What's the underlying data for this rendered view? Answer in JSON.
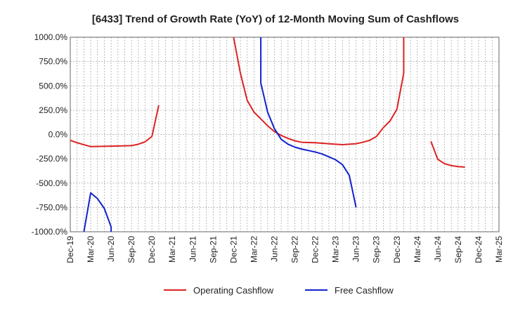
{
  "chart_data": {
    "type": "line",
    "title": "[6433]  Trend of Growth Rate (YoY) of 12-Month Moving Sum of Cashflows",
    "xlabel": "",
    "ylabel": "",
    "ylim": [
      -1000,
      1000
    ],
    "y_ticks": [
      "1000.0%",
      "750.0%",
      "500.0%",
      "250.0%",
      "0.0%",
      "-250.0%",
      "-500.0%",
      "-750.0%",
      "-1000.0%"
    ],
    "y_tick_values": [
      1000,
      750,
      500,
      250,
      0,
      -250,
      -500,
      -750,
      -1000
    ],
    "x_ticks": [
      "Dec-19",
      "Mar-20",
      "Jun-20",
      "Sep-20",
      "Dec-20",
      "Mar-21",
      "Jun-21",
      "Sep-21",
      "Dec-21",
      "Mar-22",
      "Jun-22",
      "Sep-22",
      "Dec-22",
      "Mar-23",
      "Jun-23",
      "Sep-23",
      "Dec-23",
      "Mar-24",
      "Jun-24",
      "Sep-24",
      "Dec-24",
      "Mar-25"
    ],
    "grid": true,
    "legend_position": "bottom",
    "series": [
      {
        "name": "Operating Cashflow",
        "color": "#dd2222",
        "points": [
          [
            "Dec-19",
            -60
          ],
          [
            "Jan-20",
            -85
          ],
          [
            "Feb-20",
            -105
          ],
          [
            "Mar-20",
            -125
          ],
          [
            "Apr-20",
            -123
          ],
          [
            "Jun-20",
            -120
          ],
          [
            "Sep-20",
            -115
          ],
          [
            "Oct-20",
            -100
          ],
          [
            "Nov-20",
            -75
          ],
          [
            "Dec-20",
            -20
          ],
          [
            "Jan-21",
            300
          ],
          null,
          [
            "Dec-21",
            1000
          ],
          [
            "Jan-22",
            630
          ],
          [
            "Feb-22",
            350
          ],
          [
            "Mar-22",
            230
          ],
          [
            "Apr-22",
            160
          ],
          [
            "May-22",
            90
          ],
          [
            "Jun-22",
            30
          ],
          [
            "Jul-22",
            -10
          ],
          [
            "Aug-22",
            -40
          ],
          [
            "Sep-22",
            -65
          ],
          [
            "Oct-22",
            -80
          ],
          [
            "Dec-22",
            -85
          ],
          [
            "Mar-23",
            -100
          ],
          [
            "Apr-23",
            -105
          ],
          [
            "Jun-23",
            -95
          ],
          [
            "Jul-23",
            -80
          ],
          [
            "Aug-23",
            -60
          ],
          [
            "Sep-23",
            -20
          ],
          [
            "Oct-23",
            70
          ],
          [
            "Nov-23",
            140
          ],
          [
            "Dec-23",
            260
          ],
          [
            "Jan-24",
            630
          ],
          [
            "Jan-24",
            1000
          ],
          null,
          [
            "May-24",
            -70
          ],
          [
            "Jun-24",
            -255
          ],
          [
            "Jul-24",
            -300
          ],
          [
            "Aug-24",
            -320
          ],
          [
            "Sep-24",
            -330
          ],
          [
            "Oct-24",
            -335
          ]
        ]
      },
      {
        "name": "Free Cashflow",
        "color": "#1122cc",
        "points": [
          [
            "Feb-20",
            -1000
          ],
          [
            "Mar-20",
            -600
          ],
          [
            "Apr-20",
            -660
          ],
          [
            "May-20",
            -760
          ],
          [
            "Jun-20",
            -950
          ],
          [
            "Jun-20",
            -1000
          ],
          null,
          [
            "Apr-22",
            1000
          ],
          [
            "Apr-22",
            530
          ],
          [
            "May-22",
            230
          ],
          [
            "Jun-22",
            60
          ],
          [
            "Jul-22",
            -50
          ],
          [
            "Aug-22",
            -100
          ],
          [
            "Sep-22",
            -130
          ],
          [
            "Oct-22",
            -150
          ],
          [
            "Dec-22",
            -180
          ],
          [
            "Jan-23",
            -200
          ],
          [
            "Feb-23",
            -230
          ],
          [
            "Mar-23",
            -260
          ],
          [
            "Apr-23",
            -310
          ],
          [
            "May-23",
            -420
          ],
          [
            "Jun-23",
            -750
          ]
        ]
      }
    ]
  }
}
